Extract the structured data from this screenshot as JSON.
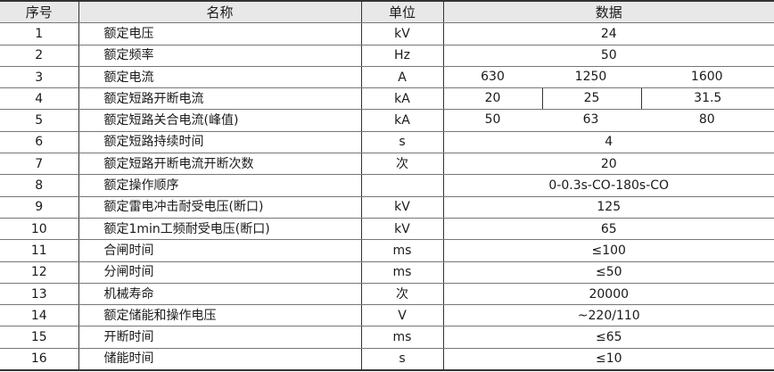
{
  "headers": [
    "序号",
    "名称",
    "单位",
    "数据"
  ],
  "rows": [
    {
      "no": "1",
      "name": "额定电压",
      "unit": "kV",
      "value": "24"
    },
    {
      "no": "2",
      "name": "额定频率",
      "unit": "Hz",
      "value": "50"
    },
    {
      "no": "3",
      "name": "额定电流",
      "unit": "A",
      "values": [
        "630",
        "1250",
        "1600"
      ]
    },
    {
      "no": "4",
      "name": "额定短路开断电流",
      "unit": "kA",
      "values": [
        "20",
        "25",
        "31.5"
      ]
    },
    {
      "no": "5",
      "name": "额定短路关合电流(峰值)",
      "unit": "kA",
      "values": [
        "50",
        "63",
        "80"
      ]
    },
    {
      "no": "6",
      "name": "额定短路持续时间",
      "unit": "s",
      "value": "4"
    },
    {
      "no": "7",
      "name": "额定短路开断电流开断次数",
      "unit": "次",
      "value": "20"
    },
    {
      "no": "8",
      "name": "额定操作顺序",
      "unit": "",
      "value": "0-0.3s-CO-180s-CO"
    },
    {
      "no": "9",
      "name": "额定雷电冲击耐受电压(断口)",
      "unit": "kV",
      "value": "125"
    },
    {
      "no": "10",
      "name": "额定1min工频耐受电压(断口)",
      "unit": "kV",
      "value": "65"
    },
    {
      "no": "11",
      "name": "合闸时间",
      "unit": "ms",
      "value": "≤100"
    },
    {
      "no": "12",
      "name": "分闸时间",
      "unit": "ms",
      "value": "≤50"
    },
    {
      "no": "13",
      "name": "机械寿命",
      "unit": "次",
      "value": "20000"
    },
    {
      "no": "14",
      "name": "额定储能和操作电压",
      "unit": "V",
      "value": "~220/110"
    },
    {
      "no": "15",
      "name": "开断时间",
      "unit": "ms",
      "value": "≤65"
    },
    {
      "no": "16",
      "name": "储能时间",
      "unit": "s",
      "value": "≤10"
    }
  ]
}
